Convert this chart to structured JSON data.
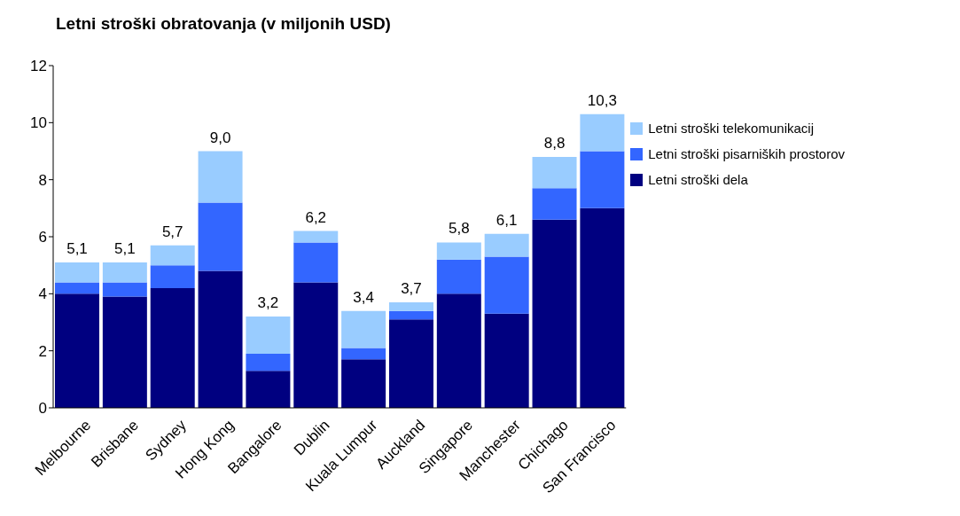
{
  "chart_data": {
    "type": "bar",
    "title": "Letni stroški obratovanja (v miljonih USD)",
    "stacked": true,
    "categories": [
      "Melbourne",
      "Brisbane",
      "Sydney",
      "Hong Kong",
      "Bangalore",
      "Dublin",
      "Kuala Lumpur",
      "Auckland",
      "Singapore",
      "Manchester",
      "Chichago",
      "San Francisco"
    ],
    "series": [
      {
        "name": "Letni stroški dela",
        "color": "#000080",
        "values": [
          4.0,
          3.9,
          4.2,
          4.8,
          1.3,
          4.4,
          1.7,
          3.1,
          4.0,
          3.3,
          6.6,
          7.0
        ]
      },
      {
        "name": "Letni stroški pisarniških prostorov",
        "color": "#3366ff",
        "values": [
          0.4,
          0.5,
          0.8,
          2.4,
          0.6,
          1.4,
          0.4,
          0.3,
          1.2,
          2.0,
          1.1,
          2.0
        ]
      },
      {
        "name": "Letni stroški telekomunikacij",
        "color": "#99ccff",
        "values": [
          0.7,
          0.7,
          0.7,
          1.8,
          1.3,
          0.4,
          1.3,
          0.3,
          0.6,
          0.8,
          1.1,
          1.3
        ]
      }
    ],
    "totals": [
      "5,1",
      "5,1",
      "5,7",
      "9,0",
      "3,2",
      "6,2",
      "3,4",
      "3,7",
      "5,8",
      "6,1",
      "8,8",
      "10,3"
    ],
    "ylim": [
      0,
      12
    ],
    "yticks": [
      0,
      2,
      4,
      6,
      8,
      10,
      12
    ],
    "grid": false,
    "legend": "top right"
  }
}
